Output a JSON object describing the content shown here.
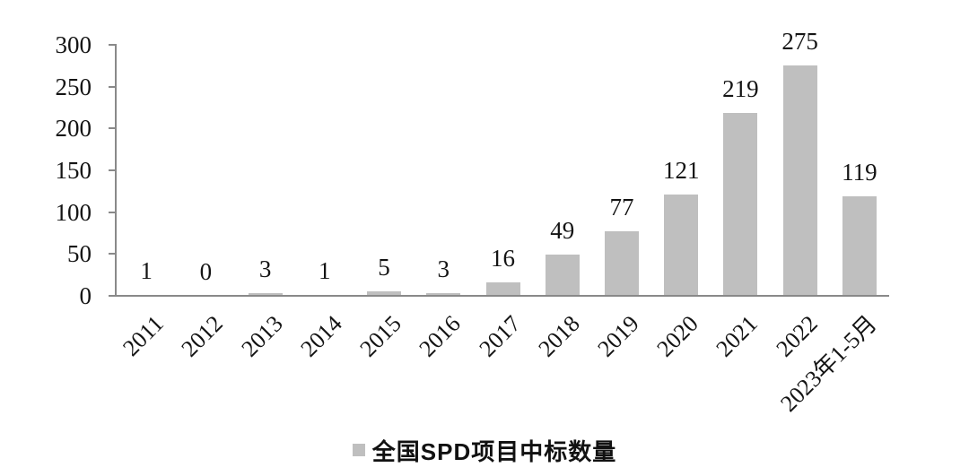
{
  "chart_data": {
    "type": "bar",
    "categories": [
      "2011",
      "2012",
      "2013",
      "2014",
      "2015",
      "2016",
      "2017",
      "2018",
      "2019",
      "2020",
      "2021",
      "2022",
      "2023年1-5月"
    ],
    "values": [
      1,
      0,
      3,
      1,
      5,
      3,
      16,
      49,
      77,
      121,
      219,
      275,
      119
    ],
    "series_name": "全国SPD项目中标数量",
    "title": "",
    "xlabel": "",
    "ylabel": "",
    "ylim": [
      0,
      300
    ],
    "yticks": [
      0,
      50,
      100,
      150,
      200,
      250,
      300
    ],
    "grid": false,
    "data_labels": true,
    "legend_position": "bottom",
    "bar_color": "#bfbfbf",
    "axis_color": "#898989",
    "text_color": "#141414"
  },
  "legend": {
    "label": "全国SPD项目中标数量",
    "marker_color": "#bfbfbf"
  }
}
